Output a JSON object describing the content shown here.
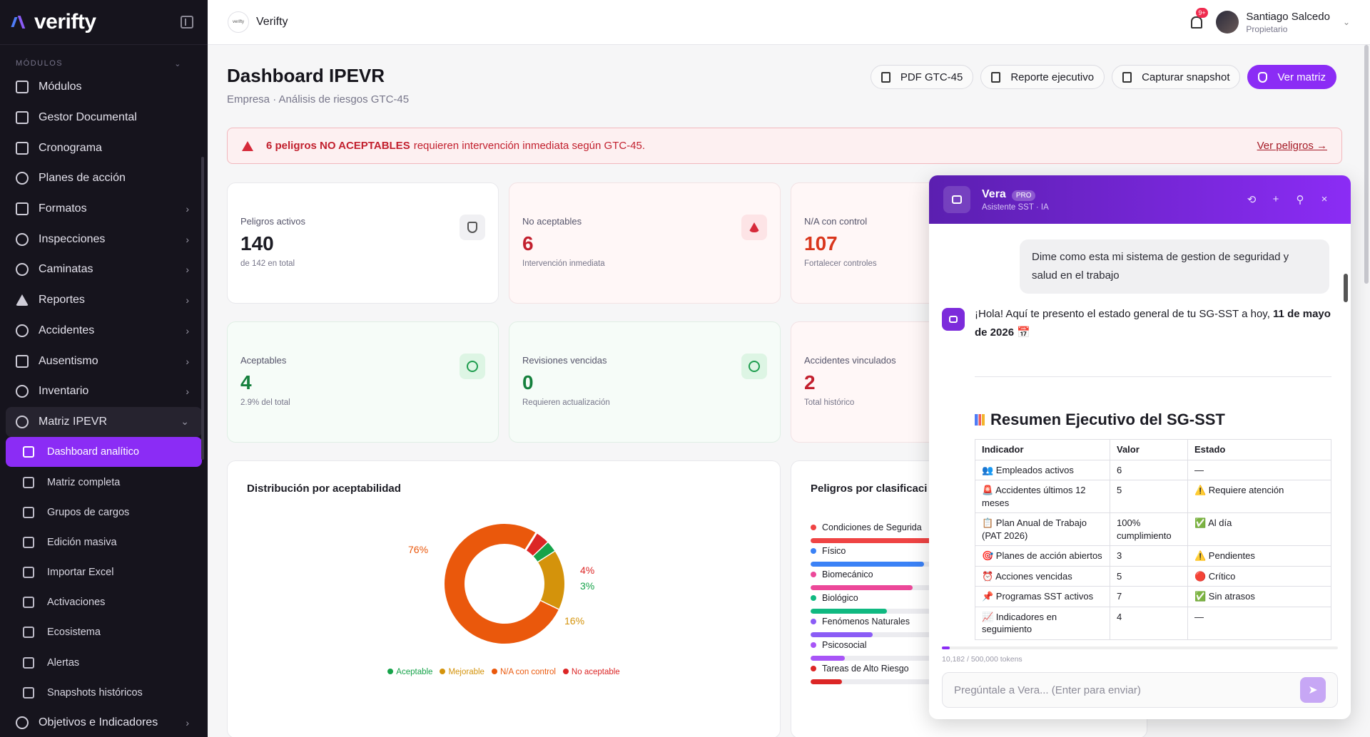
{
  "sidebar": {
    "logo": "verifty",
    "section": "MÓDULOS",
    "items": [
      {
        "label": "Módulos"
      },
      {
        "label": "Gestor Documental"
      },
      {
        "label": "Cronograma"
      },
      {
        "label": "Planes de acción"
      },
      {
        "label": "Formatos"
      },
      {
        "label": "Inspecciones"
      },
      {
        "label": "Caminatas"
      },
      {
        "label": "Reportes"
      },
      {
        "label": "Accidentes"
      },
      {
        "label": "Ausentismo"
      },
      {
        "label": "Inventario"
      },
      {
        "label": "Matriz IPEVR"
      }
    ],
    "sub_items": [
      {
        "label": "Dashboard analítico"
      },
      {
        "label": "Matriz completa"
      },
      {
        "label": "Grupos de cargos"
      },
      {
        "label": "Edición masiva"
      },
      {
        "label": "Importar Excel"
      },
      {
        "label": "Activaciones"
      },
      {
        "label": "Ecosistema"
      },
      {
        "label": "Alertas"
      },
      {
        "label": "Snapshots históricos"
      }
    ],
    "last_item": "Objetivos e Indicadores"
  },
  "topbar": {
    "org_logo": "verifty",
    "org_name": "Verifty",
    "notification_count": "9+",
    "user_name": "Santiago Salcedo",
    "user_role": "Propietario"
  },
  "page": {
    "title": "Dashboard IPEVR",
    "subtitle": "Empresa · Análisis de riesgos GTC-45",
    "actions": {
      "pdf": "PDF GTC-45",
      "report": "Reporte ejecutivo",
      "snapshot": "Capturar snapshot",
      "matrix": "Ver matriz"
    },
    "alert": {
      "bold": "6 peligros NO ACEPTABLES",
      "text": "requieren intervención inmediata según GTC-45.",
      "link": "Ver peligros →"
    }
  },
  "stats": [
    {
      "label": "Peligros activos",
      "value": "140",
      "note": "de 142 en total"
    },
    {
      "label": "No aceptables",
      "value": "6",
      "note": "Intervención inmediata"
    },
    {
      "label": "N/A con control",
      "value": "107",
      "note": "Fortalecer controles"
    },
    {
      "label": "Aceptables",
      "value": "4",
      "note": "2.9% del total"
    },
    {
      "label": "Revisiones vencidas",
      "value": "0",
      "note": "Requieren actualización"
    },
    {
      "label": "Accidentes vinculados",
      "value": "2",
      "note": "Total histórico"
    }
  ],
  "chart_data": [
    {
      "type": "pie",
      "title": "Distribución por aceptabilidad",
      "categories": [
        "Aceptable",
        "Mejorable",
        "N/A con control",
        "No aceptable"
      ],
      "values": [
        3,
        16,
        76,
        4
      ],
      "labels": [
        "3%",
        "16%",
        "76%",
        "4%"
      ],
      "colors": [
        "#16a34a",
        "#d4930b",
        "#ea580c",
        "#dc2626"
      ],
      "legend": "bottom"
    },
    {
      "type": "bar",
      "title": "Peligros por clasificaci",
      "categories": [
        "Condiciones de Segurida",
        "Físico",
        "Biomecánico",
        "Biológico",
        "Fenómenos Naturales",
        "Psicosocial",
        "Tareas de Alto Riesgo"
      ],
      "values": [
        58,
        40,
        36,
        27,
        22,
        12,
        11
      ],
      "colors": [
        "#ef4444",
        "#3b82f6",
        "#ec4899",
        "#10b981",
        "#8b5cf6",
        "#a855f7",
        "#dc2626"
      ]
    }
  ],
  "chat": {
    "name": "Vera",
    "badge": "PRO",
    "subtitle": "Asistente SST · IA",
    "user_message": "Dime como esta mi sistema de gestion de seguridad y salud en el trabajo",
    "bot_intro": "¡Hola! Aquí te presento el estado general de tu SG-SST a hoy,",
    "bot_date": "11 de mayo de 2026",
    "summary_title": "Resumen Ejecutivo del SG-SST",
    "table_headers": [
      "Indicador",
      "Valor",
      "Estado"
    ],
    "table_rows": [
      [
        "👥 Empleados activos",
        "6",
        "—"
      ],
      [
        "🚨 Accidentes últimos 12 meses",
        "5",
        "⚠️ Requiere atención"
      ],
      [
        "📋 Plan Anual de Trabajo (PAT 2026)",
        "100% cumplimiento",
        "✅ Al día"
      ],
      [
        "🎯 Planes de acción abiertos",
        "3",
        "⚠️ Pendientes"
      ],
      [
        "⏰ Acciones vencidas",
        "5",
        "🔴 Crítico"
      ],
      [
        "📌 Programas SST activos",
        "7",
        "✅ Sin atrasos"
      ],
      [
        "📈 Indicadores en seguimiento",
        "4",
        "—"
      ]
    ],
    "tokens": "10,182 / 500,000 tokens",
    "token_usage": 0.0204,
    "input_placeholder": "Pregúntale a Vera... (Enter para enviar)"
  }
}
